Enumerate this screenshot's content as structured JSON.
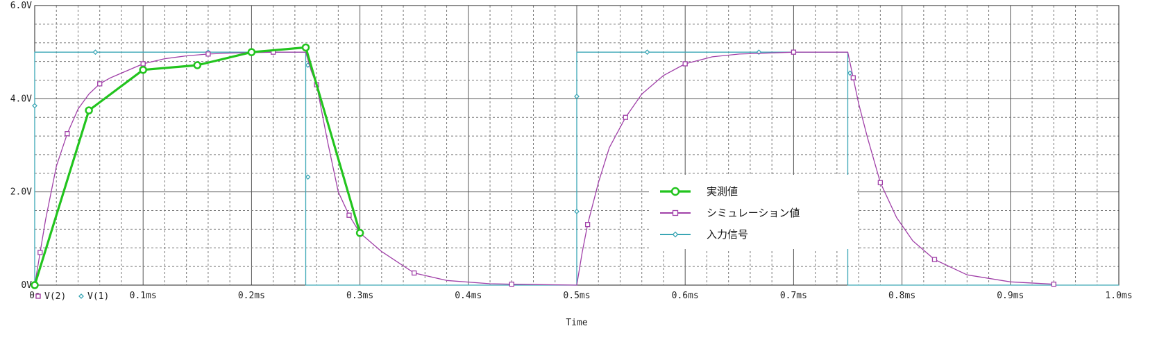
{
  "chart_data": {
    "type": "line",
    "xlabel": "Time",
    "ylabel": "",
    "xlim": [
      0,
      1.0
    ],
    "ylim": [
      0,
      6.0
    ],
    "x_unit": "ms",
    "y_unit": "V",
    "x_ticks": [
      0,
      0.1,
      0.2,
      0.3,
      0.4,
      0.5,
      0.6,
      0.7,
      0.8,
      0.9,
      1.0
    ],
    "x_tick_labels": [
      "0s",
      "0.1ms",
      "0.2ms",
      "0.3ms",
      "0.4ms",
      "0.5ms",
      "0.6ms",
      "0.7ms",
      "0.8ms",
      "0.9ms",
      "1.0ms"
    ],
    "y_ticks": [
      0,
      2,
      4,
      6
    ],
    "y_tick_labels": [
      "0V",
      "2.0V",
      "4.0V",
      "6.0V"
    ],
    "grid": true,
    "legend_position": "center-right",
    "trace_legend": [
      {
        "marker": "square",
        "label": "V(2)",
        "color": "#9b2f9b"
      },
      {
        "marker": "diamond",
        "label": "V(1)",
        "color": "#3aa6b5"
      }
    ],
    "series": [
      {
        "name": "実測値",
        "color": "#22c41e",
        "marker": "circle",
        "x": [
          0,
          0.05,
          0.1,
          0.15,
          0.2,
          0.25,
          0.3
        ],
        "y": [
          0,
          3.75,
          4.62,
          4.72,
          5.0,
          5.1,
          1.12
        ]
      },
      {
        "name": "シミュレーション値",
        "color": "#a040a8",
        "marker": "square",
        "x": [
          0,
          0.005,
          0.01,
          0.02,
          0.03,
          0.04,
          0.05,
          0.06,
          0.07,
          0.08,
          0.1,
          0.12,
          0.14,
          0.16,
          0.18,
          0.2,
          0.22,
          0.25,
          0.255,
          0.26,
          0.27,
          0.28,
          0.29,
          0.3,
          0.32,
          0.35,
          0.38,
          0.42,
          0.44,
          0.5,
          0.505,
          0.51,
          0.52,
          0.53,
          0.545,
          0.56,
          0.58,
          0.6,
          0.625,
          0.65,
          0.7,
          0.73,
          0.75,
          0.755,
          0.76,
          0.768,
          0.78,
          0.795,
          0.81,
          0.83,
          0.86,
          0.9,
          0.94
        ],
        "y": [
          0,
          0.7,
          1.4,
          2.55,
          3.25,
          3.78,
          4.1,
          4.32,
          4.45,
          4.55,
          4.75,
          4.86,
          4.92,
          4.96,
          4.98,
          4.99,
          5.0,
          5.0,
          4.6,
          4.3,
          3.1,
          2.0,
          1.5,
          1.12,
          0.72,
          0.26,
          0.1,
          0.03,
          0.02,
          0,
          0.7,
          1.3,
          2.2,
          2.95,
          3.6,
          4.1,
          4.5,
          4.75,
          4.9,
          4.96,
          5.0,
          5.0,
          5.0,
          4.45,
          3.9,
          3.18,
          2.2,
          1.45,
          0.95,
          0.55,
          0.22,
          0.07,
          0.02
        ]
      },
      {
        "name": "入力信号",
        "color": "#3aa6b5",
        "marker": "diamond",
        "x": [
          0,
          0,
          0.25,
          0.25,
          0.5,
          0.5,
          0.75,
          0.75,
          1.0
        ],
        "y": [
          0,
          5,
          5,
          0,
          0,
          5,
          5,
          0,
          0
        ]
      }
    ]
  }
}
